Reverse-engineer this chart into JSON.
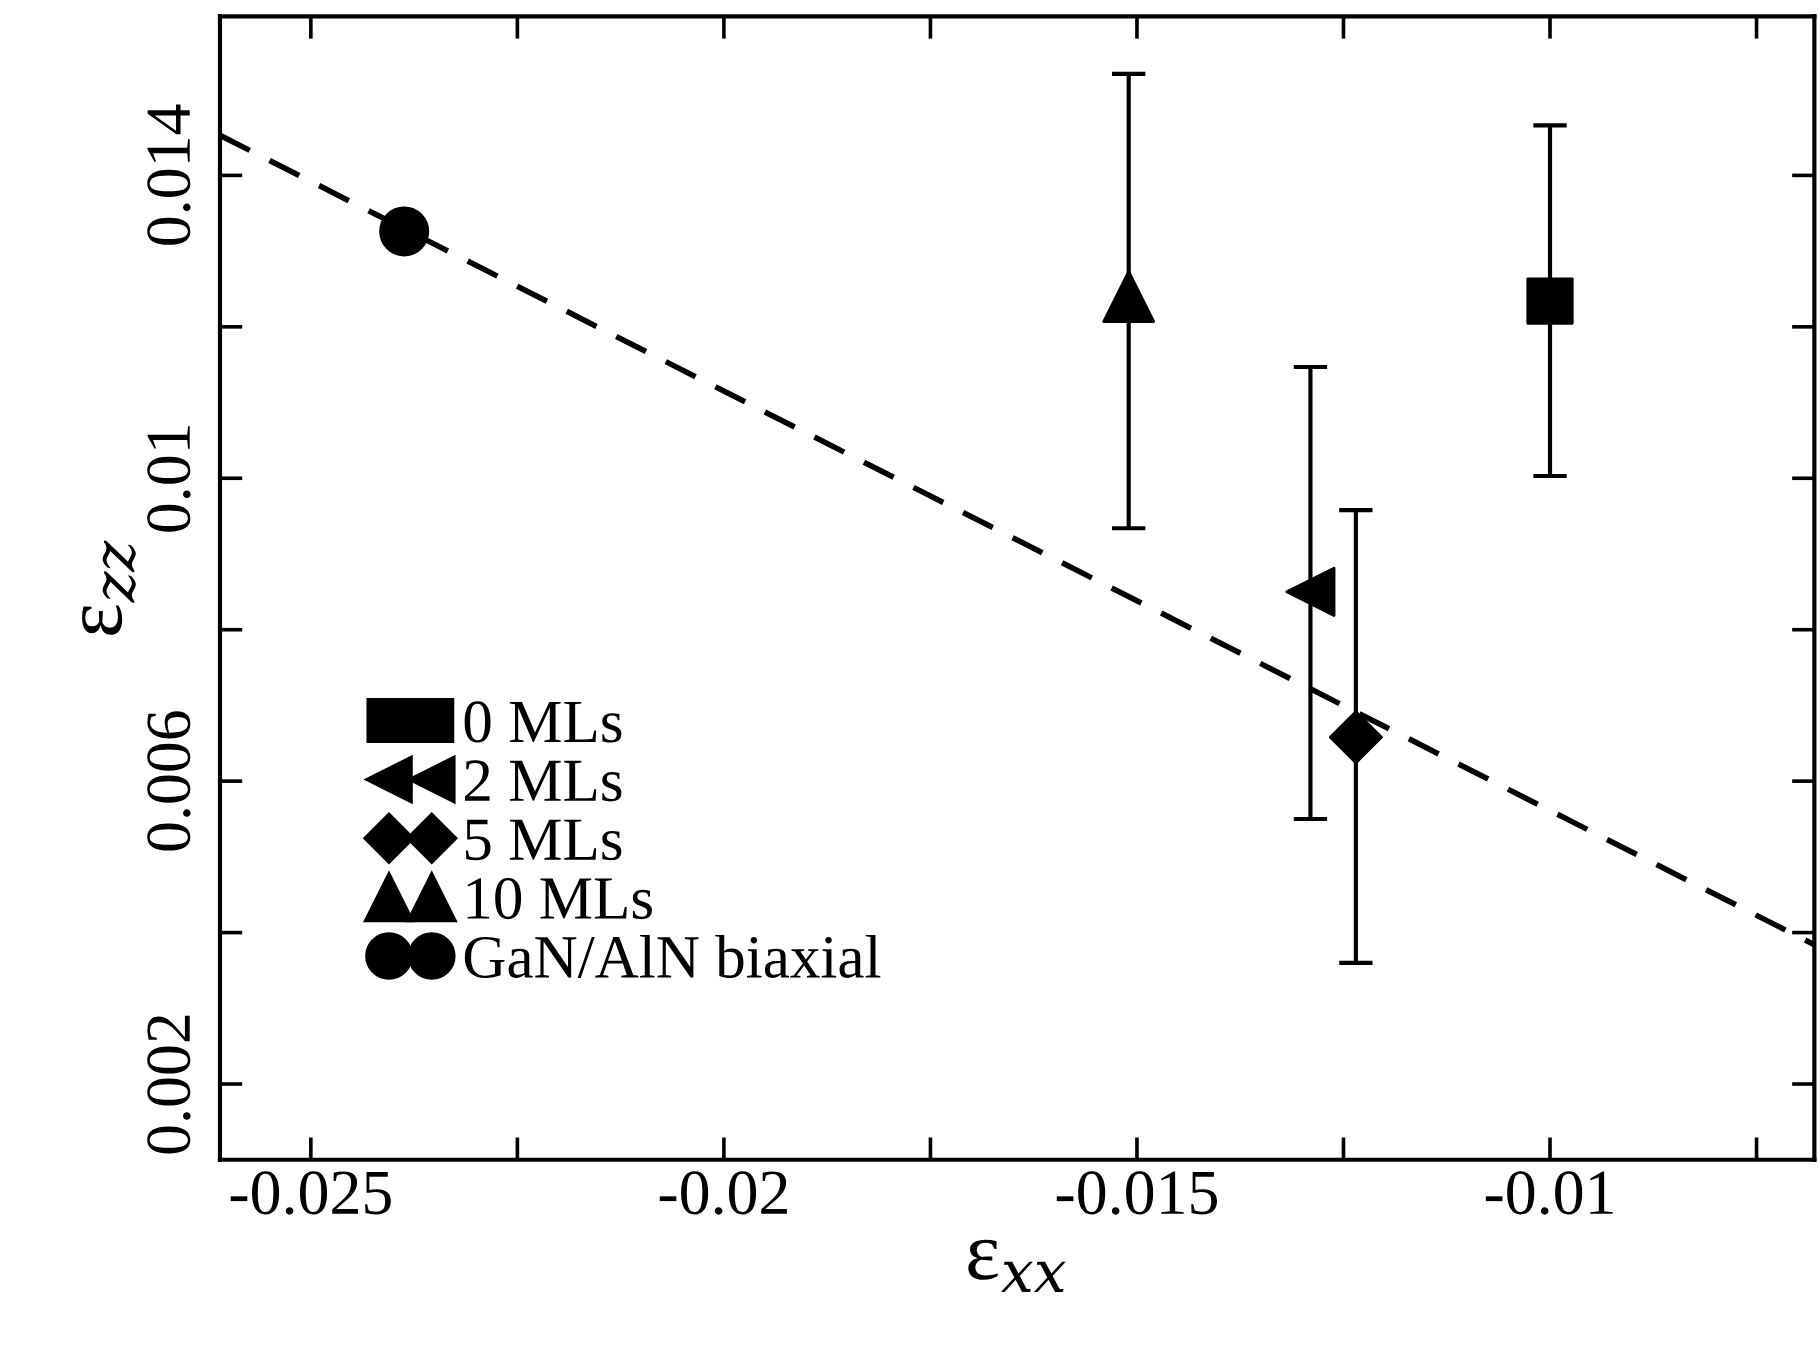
{
  "chart_data": {
    "type": "scatter",
    "xlabel": "ε$_{xx}$",
    "ylabel": "ε$_{zz}$",
    "xlim": [
      -0.0261,
      -0.0068
    ],
    "ylim": [
      0.001,
      0.0161
    ],
    "xticks": [
      -0.025,
      {
        "value": -0.0225,
        "label": null
      },
      -0.02,
      {
        "value": -0.0175,
        "label": null
      },
      -0.015,
      {
        "value": -0.0125,
        "label": null
      },
      -0.01,
      {
        "value": -0.0075,
        "label": null
      }
    ],
    "yticks": [
      0.002,
      {
        "value": 0.004,
        "label": null
      },
      0.006,
      {
        "value": 0.008,
        "label": null
      },
      0.01,
      {
        "value": 0.012,
        "label": null
      },
      0.014
    ],
    "grid": false,
    "legend": "bottom left",
    "series": [
      {
        "name": "0 MLs",
        "color": "#000000",
        "marker": "square",
        "x": [
          -0.01
        ],
        "values": [
          0.01234
        ],
        "errors": [
          [
            0.01003,
            0.01466
          ]
        ]
      },
      {
        "name": "2 MLs",
        "color": "#000000",
        "marker": "triangle_left",
        "x": [
          -0.0129
        ],
        "values": [
          0.0085
        ],
        "errors": [
          [
            0.0055,
            0.01147
          ]
        ]
      },
      {
        "name": "5 MLs",
        "color": "#000000",
        "marker": "diamond",
        "x": [
          -0.01235
        ],
        "values": [
          0.00658
        ],
        "errors": [
          [
            0.0036,
            0.00958
          ]
        ]
      },
      {
        "name": "10 MLs",
        "color": "#000000",
        "marker": "triangle",
        "x": [
          -0.0151
        ],
        "values": [
          0.0124
        ],
        "errors": [
          [
            0.00934,
            0.01534
          ]
        ]
      },
      {
        "name": "GaN/AlN biaxial",
        "color": "#000000",
        "marker": "circle",
        "x": [
          -0.02387
        ],
        "values": [
          0.01326
        ]
      },
      {
        "type": "line",
        "color": "#000000",
        "line_style": "dashed",
        "marker": "none",
        "x": [
          -0.0261,
          -0.0068
        ],
        "values": [
          0.01453,
          0.00384
        ]
      }
    ]
  }
}
